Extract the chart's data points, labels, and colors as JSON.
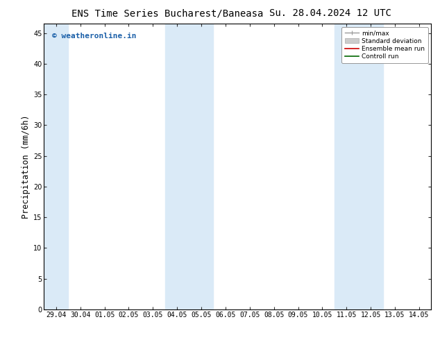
{
  "title_left": "ENS Time Series Bucharest/Baneasa",
  "title_right": "Su. 28.04.2024 12 UTC",
  "ylabel": "Precipitation (mm/6h)",
  "watermark": "© weatheronline.in",
  "watermark_color": "#1a5fa8",
  "background_color": "#ffffff",
  "plot_bg_color": "#ffffff",
  "shaded_band_color": "#daeaf7",
  "x_tick_labels": [
    "29.04",
    "30.04",
    "01.05",
    "02.05",
    "03.05",
    "04.05",
    "05.05",
    "06.05",
    "07.05",
    "08.05",
    "09.05",
    "10.05",
    "11.05",
    "12.05",
    "13.05",
    "14.05"
  ],
  "x_tick_positions": [
    0,
    1,
    2,
    3,
    4,
    5,
    6,
    7,
    8,
    9,
    10,
    11,
    12,
    13,
    14,
    15
  ],
  "ylim": [
    0,
    46.5
  ],
  "yticks": [
    0,
    5,
    10,
    15,
    20,
    25,
    30,
    35,
    40,
    45
  ],
  "shaded_columns": [
    0,
    5,
    6,
    12,
    13
  ],
  "legend_items": [
    {
      "label": "min/max",
      "color": "#aaaaaa",
      "lw": 1.5
    },
    {
      "label": "Standard deviation",
      "color": "#cccccc",
      "lw": 6
    },
    {
      "label": "Ensemble mean run",
      "color": "#cc0000",
      "lw": 1.2
    },
    {
      "label": "Controll run",
      "color": "#006600",
      "lw": 1.2
    }
  ],
  "title_fontsize": 10,
  "tick_label_fontsize": 7,
  "ylabel_fontsize": 8.5,
  "watermark_fontsize": 8
}
